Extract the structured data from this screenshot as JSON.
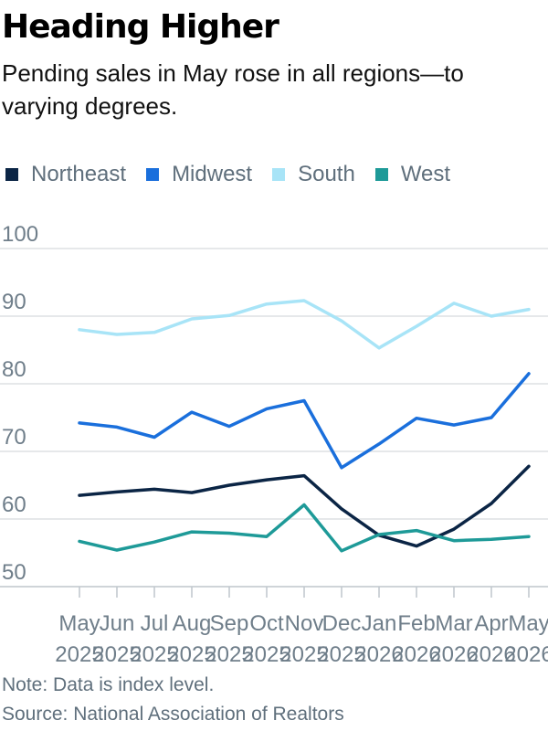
{
  "header": {
    "title": "Heading Higher",
    "subtitle": "Pending sales in May rose in all regions—to varying degrees."
  },
  "footer": {
    "note": "Note: Data is index level.",
    "source": "Source: National Association of Realtors"
  },
  "chart_data": {
    "type": "line",
    "title": "Heading Higher",
    "subtitle": "Pending sales in May rose in all regions—to varying degrees.",
    "x_labels": [
      [
        "May",
        "2025"
      ],
      [
        "Jun",
        "2025"
      ],
      [
        "Jul",
        "2025"
      ],
      [
        "Aug",
        "2025"
      ],
      [
        "Sep",
        "2025"
      ],
      [
        "Oct",
        "2025"
      ],
      [
        "Nov",
        "2025"
      ],
      [
        "Dec",
        "2025"
      ],
      [
        "Jan",
        "2026"
      ],
      [
        "Feb",
        "2026"
      ],
      [
        "Mar",
        "2026"
      ],
      [
        "Apr",
        "2026"
      ],
      [
        "May",
        "2026"
      ]
    ],
    "y_ticks": [
      50,
      60,
      70,
      80,
      90,
      100
    ],
    "ylim": [
      50,
      100
    ],
    "grid": true,
    "legend_position": "top-left",
    "series": [
      {
        "name": "Northeast",
        "color": "#0b2545",
        "values": [
          63.5,
          64.0,
          64.4,
          63.9,
          65.0,
          65.8,
          66.4,
          61.5,
          57.6,
          56.0,
          58.5,
          62.3,
          67.8
        ]
      },
      {
        "name": "Midwest",
        "color": "#1a6fdc",
        "values": [
          74.2,
          73.6,
          72.1,
          75.8,
          73.7,
          76.3,
          77.5,
          67.6,
          71.1,
          74.9,
          73.9,
          75.0,
          81.5
        ]
      },
      {
        "name": "South",
        "color": "#a8e4f7",
        "values": [
          88.0,
          87.3,
          87.6,
          89.6,
          90.1,
          91.8,
          92.3,
          89.3,
          85.3,
          88.5,
          91.9,
          90.0,
          91.0
        ]
      },
      {
        "name": "West",
        "color": "#1e9a98",
        "values": [
          56.7,
          55.4,
          56.6,
          58.1,
          57.9,
          57.4,
          62.1,
          55.3,
          57.7,
          58.3,
          56.8,
          57.0,
          57.4
        ]
      }
    ]
  }
}
